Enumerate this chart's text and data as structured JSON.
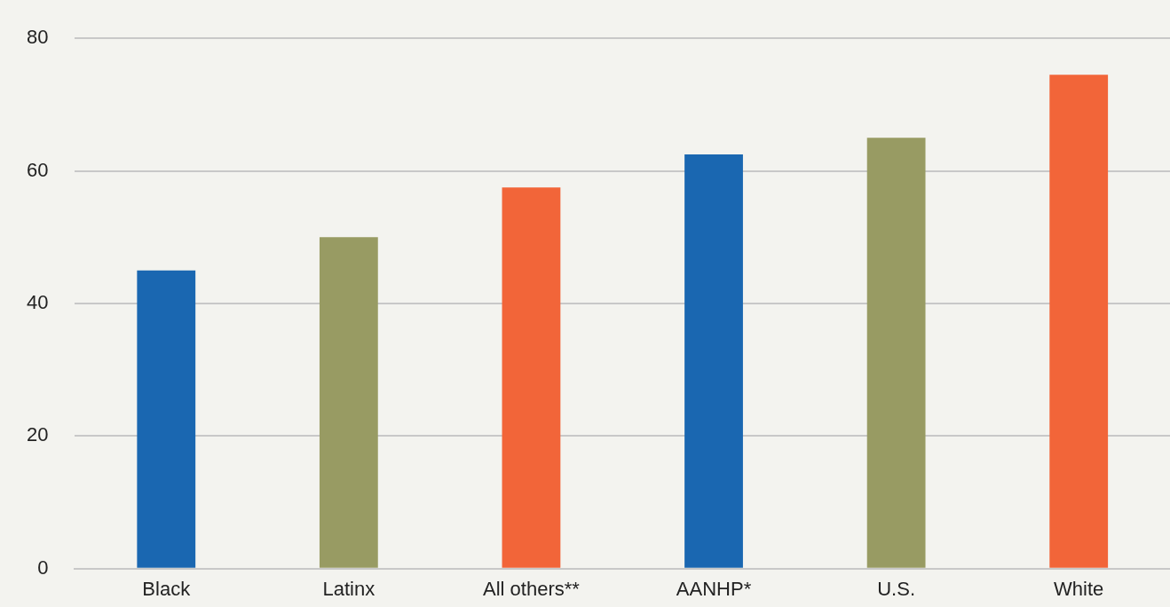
{
  "chart_data": {
    "type": "bar",
    "categories": [
      "Black",
      "Latinx",
      "All others**",
      "AANHP*",
      "U.S.",
      "White"
    ],
    "values": [
      45,
      50,
      57.5,
      62.5,
      65,
      74.5
    ],
    "colors": [
      "#1a67b1",
      "#989b63",
      "#f26539",
      "#1a67b1",
      "#989b63",
      "#f26539"
    ],
    "ylim": [
      0,
      80
    ],
    "yticks": [
      0,
      20,
      40,
      60,
      80
    ],
    "grid": "y"
  }
}
